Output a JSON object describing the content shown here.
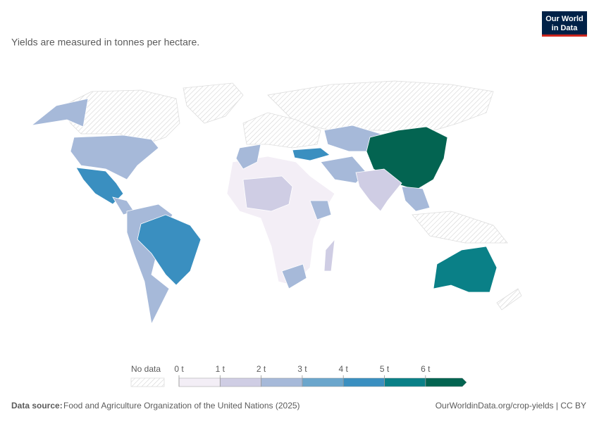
{
  "header": {
    "subtitle": "Yields are measured in tonnes per hectare.",
    "logo": [
      "Our World",
      "in Data"
    ]
  },
  "legend": {
    "no_data": "No data",
    "ticks": [
      {
        "value": 0,
        "label": "0 t"
      },
      {
        "value": 1,
        "label": "1 t"
      },
      {
        "value": 2,
        "label": "2 t"
      },
      {
        "value": 3,
        "label": "3 t"
      },
      {
        "value": 4,
        "label": "4 t"
      },
      {
        "value": 5,
        "label": "5 t"
      },
      {
        "value": 6,
        "label": "6 t"
      }
    ],
    "colors": [
      "#f3eef6",
      "#cfcde4",
      "#a6b9d9",
      "#6ba6cc",
      "#3a8fc0",
      "#0a8087",
      "#036451"
    ]
  },
  "footer": {
    "source_label": "Data source:",
    "source": "Food and Agriculture Organization of the United Nations (2025)",
    "url": "OurWorldinData.org/crop-yields | CC BY"
  }
}
